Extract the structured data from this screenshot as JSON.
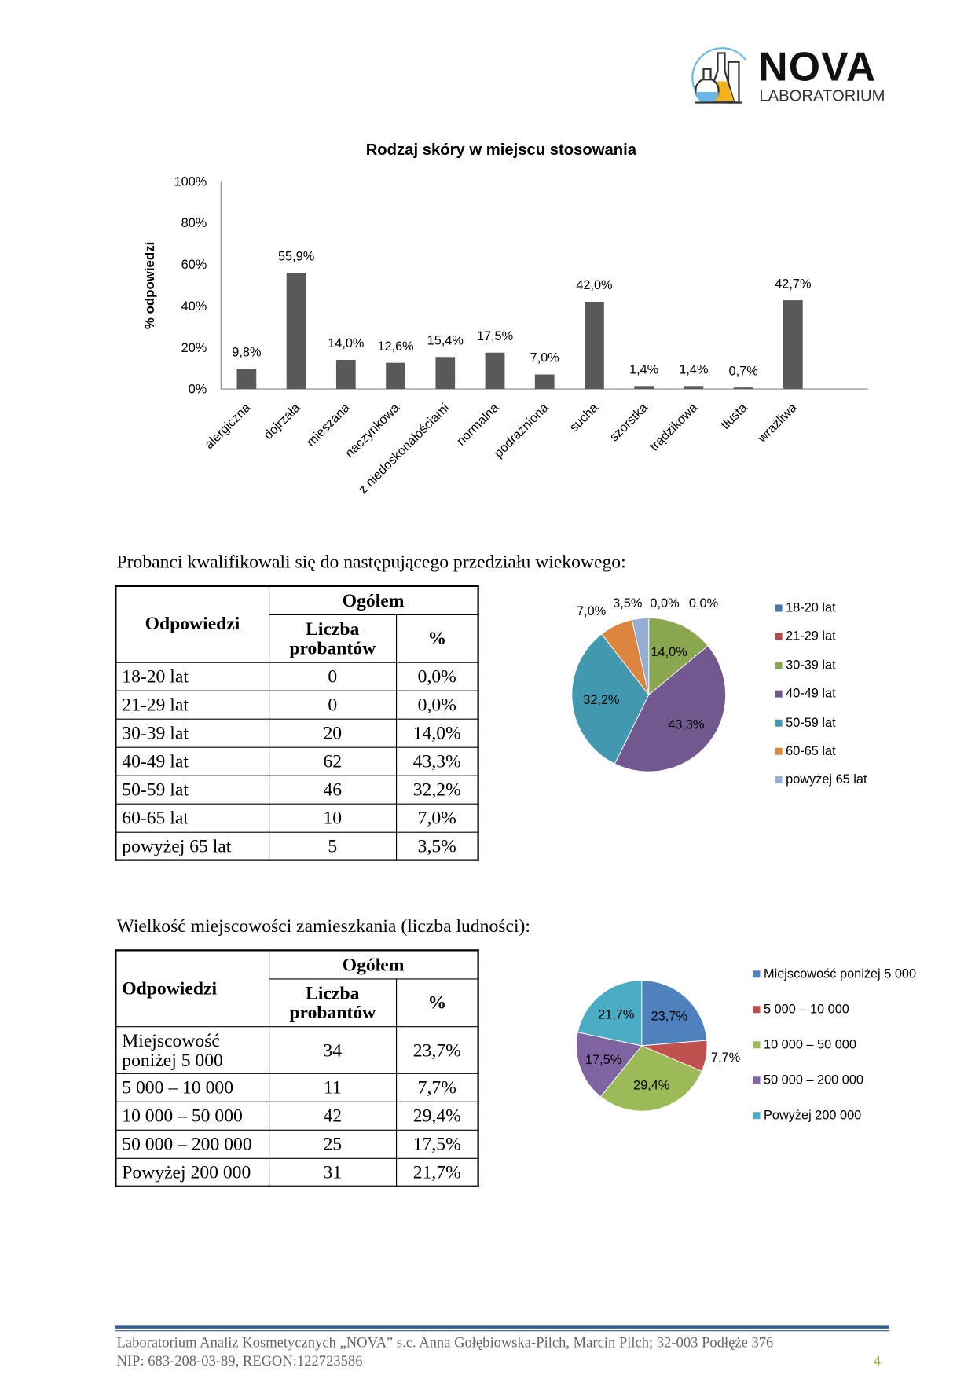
{
  "logo": {
    "brand": "NOVA",
    "sub": "LABORATORIUM"
  },
  "chart_data": [
    {
      "type": "bar",
      "title": "Rodzaj skóry w miejscu stosowania",
      "ylabel": "% odpowiedzi",
      "xlabel": "",
      "ylim": [
        0,
        100
      ],
      "yticks": [
        "0%",
        "20%",
        "40%",
        "60%",
        "80%",
        "100%"
      ],
      "categories": [
        "alergiczna",
        "dojrzała",
        "mieszana",
        "naczynkowa",
        "z niedoskonałościami",
        "normalna",
        "podrażniona",
        "sucha",
        "szorstka",
        "trądzikowa",
        "tłusta",
        "wrażliwa"
      ],
      "values": [
        9.8,
        55.9,
        14.0,
        12.6,
        15.4,
        17.5,
        7.0,
        42.0,
        1.4,
        1.4,
        0.7,
        42.7
      ],
      "data_labels": [
        "9,8%",
        "55,9%",
        "14,0%",
        "12,6%",
        "15,4%",
        "17,5%",
        "7,0%",
        "42,0%",
        "1,4%",
        "1,4%",
        "0,7%",
        "42,7%"
      ],
      "color": "#595959",
      "grid": false
    },
    {
      "type": "pie",
      "categories": [
        "18-20 lat",
        "21-29 lat",
        "30-39 lat",
        "40-49 lat",
        "50-59 lat",
        "60-65 lat",
        "powyżej 65 lat"
      ],
      "values": [
        0.0,
        0.0,
        14.0,
        43.3,
        32.2,
        7.0,
        3.5
      ],
      "data_labels": [
        "0,0%",
        "0,0%",
        "14,0%",
        "43,3%",
        "32,2%",
        "7,0%",
        "3,5%"
      ],
      "colors": [
        "#4a76ae",
        "#b04a47",
        "#8aa64f",
        "#71588f",
        "#4198af",
        "#dc853e",
        "#94aed4"
      ],
      "legend": "right"
    },
    {
      "type": "pie",
      "categories": [
        "Miejscowość poniżej 5 000",
        "5 000 – 10 000",
        "10 000 – 50 000",
        "50 000 – 200 000",
        "Powyżej 200 000"
      ],
      "values": [
        23.7,
        7.7,
        29.4,
        17.5,
        21.7
      ],
      "data_labels": [
        "23,7%",
        "7,7%",
        "29,4%",
        "17,5%",
        "21,7%"
      ],
      "colors": [
        "#4f81bd",
        "#c0504d",
        "#9bbb59",
        "#8064a2",
        "#4bacc6"
      ],
      "legend": "right"
    }
  ],
  "section1": {
    "intro": "Probanci kwalifikowali się do następującego przedziału wiekowego:",
    "table": {
      "h_answers": "Odpowiedzi",
      "h_total": "Ogółem",
      "h_count": "Liczba probantów",
      "h_pct": "%",
      "rows": [
        [
          "18-20 lat",
          "0",
          "0,0%"
        ],
        [
          "21-29 lat",
          "0",
          "0,0%"
        ],
        [
          "30-39 lat",
          "20",
          "14,0%"
        ],
        [
          "40-49 lat",
          "62",
          "43,3%"
        ],
        [
          "50-59 lat",
          "46",
          "32,2%"
        ],
        [
          "60-65 lat",
          "10",
          "7,0%"
        ],
        [
          "powyżej 65 lat",
          "5",
          "3,5%"
        ]
      ]
    }
  },
  "section2": {
    "intro": "Wielkość miejscowości zamieszkania (liczba ludności):",
    "table": {
      "h_answers": "Odpowiedzi",
      "h_total": "Ogółem",
      "h_count": "Liczba probantów",
      "h_pct": "%",
      "rows": [
        [
          "Miejscowość poniżej 5 000",
          "34",
          "23,7%"
        ],
        [
          "5 000 – 10 000",
          "11",
          "7,7%"
        ],
        [
          "10 000 – 50 000",
          "42",
          "29,4%"
        ],
        [
          "50 000 – 200 000",
          "25",
          "17,5%"
        ],
        [
          "Powyżej 200 000",
          "31",
          "21,7%"
        ]
      ]
    }
  },
  "footer": {
    "line1": "Laboratorium Analiz Kosmetycznych „NOVA” s.c. Anna Gołębiowska-Pilch, Marcin Pilch; 32-003 Podłęże 376",
    "line2": "NIP: 683-208-03-89, REGON:122723586",
    "page_number": "4"
  }
}
